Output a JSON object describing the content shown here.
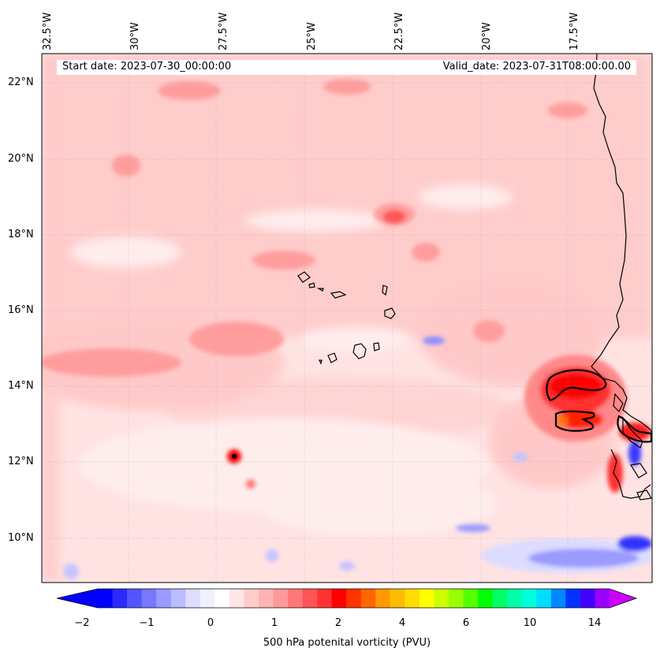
{
  "map": {
    "start_date_text": "Start date: 2023-07-30_00:00:00",
    "valid_date_text": "Valid_date: 2023-07-31T08:00:00.00",
    "lon_labels": [
      "32.5°W",
      "30°W",
      "27.5°W",
      "25°W",
      "22.5°W",
      "20°W",
      "17.5°W"
    ],
    "lat_labels": [
      "22°N",
      "20°N",
      "18°N",
      "16°N",
      "14°N",
      "12°N",
      "10°N"
    ],
    "background_color": "#ffe3e3",
    "coast_color": "#000000"
  },
  "colorbar": {
    "label": "500 hPa potenital vorticity (PVU)",
    "tick_labels": [
      "−2",
      "−1",
      "0",
      "1",
      "2",
      "4",
      "6",
      "10",
      "14"
    ],
    "colors": [
      "#0000ff",
      "#2a2aff",
      "#5555ff",
      "#7777ff",
      "#9a9aff",
      "#bbbbff",
      "#ddddff",
      "#f0f0ff",
      "#ffffff",
      "#ffe6e6",
      "#ffcccc",
      "#ffb3b3",
      "#ff9999",
      "#ff7777",
      "#ff5555",
      "#ff3333",
      "#ff0000",
      "#ff3300",
      "#ff6600",
      "#ff9900",
      "#ffbb00",
      "#ffdd00",
      "#ffff00",
      "#ccff00",
      "#99ff00",
      "#55ff00",
      "#00ff00",
      "#00ff66",
      "#00ffaa",
      "#00ffdd",
      "#00ddff",
      "#0088ff",
      "#0033ff",
      "#4400ff",
      "#9900ff"
    ],
    "over_color": "#cc00ff",
    "under_color": "#0000ff"
  }
}
